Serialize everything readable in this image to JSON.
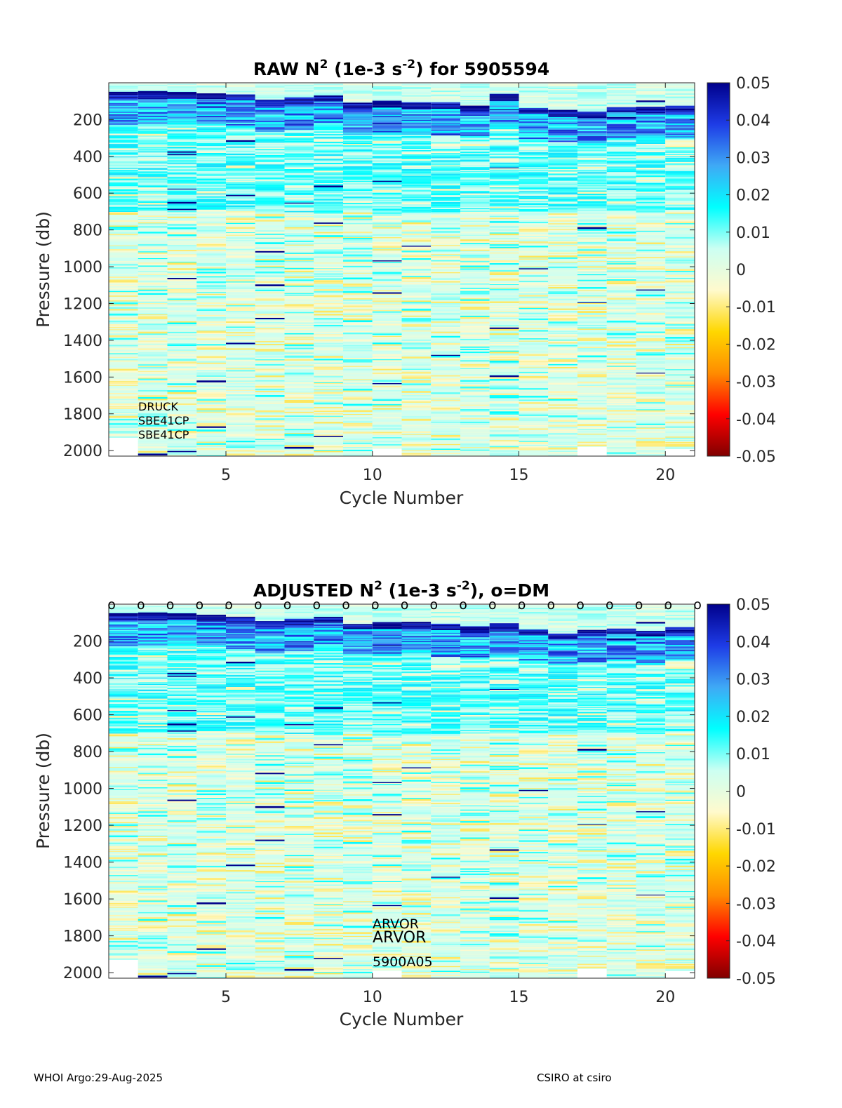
{
  "footer": {
    "left": "WHOI Argo:29-Aug-2025",
    "right": "CSIRO at csiro"
  },
  "colors": {
    "colormap": [
      "#800000",
      "#ff0000",
      "#ff8c00",
      "#ffd700",
      "#fffacd",
      "#ccfff2",
      "#00ffff",
      "#3fa9f5",
      "#1e3ce6",
      "#00008b"
    ]
  },
  "chart_data": [
    {
      "type": "heatmap",
      "title": "RAW N² (1e-3 s⁻²) for 5905594",
      "title_parts": {
        "a": "RAW N",
        "sup1": "2",
        "b": " (1e-3 s",
        "sup2": "-2",
        "c": ") for 5905594"
      },
      "xlabel": "Cycle Number",
      "ylabel": "Pressure (db)",
      "xlim": [
        1,
        21
      ],
      "ylim": [
        2030,
        0
      ],
      "yreverse": true,
      "x_ticks": [
        5,
        10,
        15,
        20
      ],
      "y_ticks": [
        200,
        400,
        600,
        800,
        1000,
        1200,
        1400,
        1600,
        1800,
        2000
      ],
      "colorbar": {
        "range": [
          -0.05,
          0.05
        ],
        "ticks": [
          0.05,
          0.04,
          0.03,
          0.02,
          0.01,
          0,
          -0.01,
          -0.02,
          -0.03,
          -0.04,
          -0.05
        ]
      },
      "cycles": [
        1,
        2,
        3,
        4,
        5,
        6,
        7,
        8,
        9,
        10,
        11,
        12,
        13,
        14,
        15,
        16,
        17,
        18,
        19,
        20
      ],
      "profile_top_pressure": [
        5,
        5,
        5,
        5,
        5,
        5,
        5,
        5,
        5,
        5,
        5,
        5,
        5,
        5,
        5,
        5,
        5,
        5,
        5,
        5
      ],
      "profile_bottom_pressure": [
        1930,
        2030,
        2030,
        2030,
        2030,
        2030,
        2030,
        2030,
        2030,
        1990,
        2030,
        2030,
        2030,
        2030,
        2030,
        2030,
        1980,
        2030,
        2030,
        1990
      ],
      "thermocline_pressure": [
        70,
        70,
        70,
        75,
        85,
        110,
        100,
        90,
        130,
        120,
        130,
        130,
        145,
        80,
        160,
        170,
        180,
        150,
        150,
        145
      ],
      "annotations": [
        "DRUCK",
        "SBE41CP",
        "SBE41CP"
      ]
    },
    {
      "type": "heatmap",
      "title": "ADJUSTED N² (1e-3 s⁻²), o=DM",
      "title_parts": {
        "a": "ADJUSTED N",
        "sup1": "2",
        "b": " (1e-3 s",
        "sup2": "-2",
        "c": "), o=DM"
      },
      "xlabel": "Cycle Number",
      "ylabel": "Pressure (db)",
      "xlim": [
        1,
        21
      ],
      "ylim": [
        2030,
        0
      ],
      "yreverse": true,
      "x_ticks": [
        5,
        10,
        15,
        20
      ],
      "y_ticks": [
        200,
        400,
        600,
        800,
        1000,
        1200,
        1400,
        1600,
        1800,
        2000
      ],
      "colorbar": {
        "range": [
          -0.05,
          0.05
        ],
        "ticks": [
          0.05,
          0.04,
          0.03,
          0.02,
          0.01,
          0,
          -0.01,
          -0.02,
          -0.03,
          -0.04,
          -0.05
        ]
      },
      "cycles": [
        1,
        2,
        3,
        4,
        5,
        6,
        7,
        8,
        9,
        10,
        11,
        12,
        13,
        14,
        15,
        16,
        17,
        18,
        19,
        20
      ],
      "dm_marker": "o",
      "dm_cycles": [
        1,
        2,
        3,
        4,
        5,
        6,
        7,
        8,
        9,
        10,
        11,
        12,
        13,
        14,
        15,
        16,
        17,
        18,
        19,
        20,
        21
      ],
      "profile_top_pressure": [
        5,
        5,
        5,
        5,
        5,
        5,
        5,
        5,
        5,
        5,
        5,
        5,
        5,
        5,
        5,
        5,
        5,
        5,
        5,
        5
      ],
      "profile_bottom_pressure": [
        1930,
        2030,
        2030,
        2030,
        2030,
        2030,
        2030,
        2030,
        2030,
        1990,
        2030,
        2030,
        2030,
        2030,
        2030,
        2030,
        1980,
        2030,
        2030,
        1990
      ],
      "thermocline_pressure": [
        70,
        70,
        70,
        80,
        90,
        110,
        100,
        90,
        125,
        120,
        115,
        130,
        140,
        125,
        160,
        180,
        160,
        150,
        165,
        145
      ],
      "annotations": [
        "ARVOR",
        "ARVOR",
        "5900A05"
      ]
    }
  ]
}
